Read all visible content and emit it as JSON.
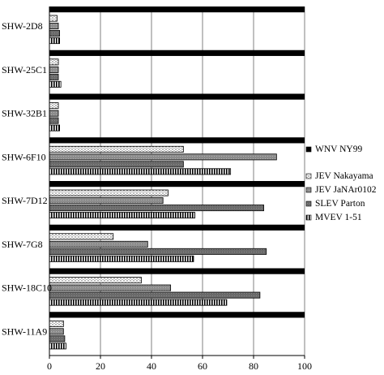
{
  "chart_data": {
    "type": "bar",
    "orientation": "horizontal",
    "grid": true,
    "legend_position": "right",
    "xlim": [
      0,
      100
    ],
    "x_ticks": [
      "0",
      "20",
      "40",
      "60",
      "80",
      "100"
    ],
    "categories": [
      "SHW-2D8",
      "SHW-25C1",
      "SHW-32B1",
      "SHW-6F10",
      "SHW-7D12",
      "SHW-7G8",
      "SHW-18C10",
      "SHW-11A9"
    ],
    "series": [
      {
        "name": "WNV NY99",
        "pattern": "solid-black",
        "values": [
          100,
          100,
          100,
          100,
          100,
          100,
          100,
          100
        ]
      },
      {
        "name": "JEV Nakayama",
        "pattern": "dots",
        "values": [
          3,
          3.5,
          3.5,
          52.5,
          46.5,
          25,
          36,
          5.5
        ]
      },
      {
        "name": "JEV JaNAr0102",
        "pattern": "gray-light",
        "values": [
          3.5,
          3.5,
          3.5,
          89,
          44.5,
          38.5,
          47.5,
          5.5
        ]
      },
      {
        "name": "SLEV Parton",
        "pattern": "gray-dark",
        "values": [
          4,
          3.5,
          3.5,
          52.5,
          84,
          85,
          82.5,
          6
        ]
      },
      {
        "name": "MVEV 1-51",
        "pattern": "vertical-stripes",
        "values": [
          4,
          4.5,
          4,
          71,
          57,
          56.5,
          69.5,
          6.5
        ]
      }
    ]
  }
}
